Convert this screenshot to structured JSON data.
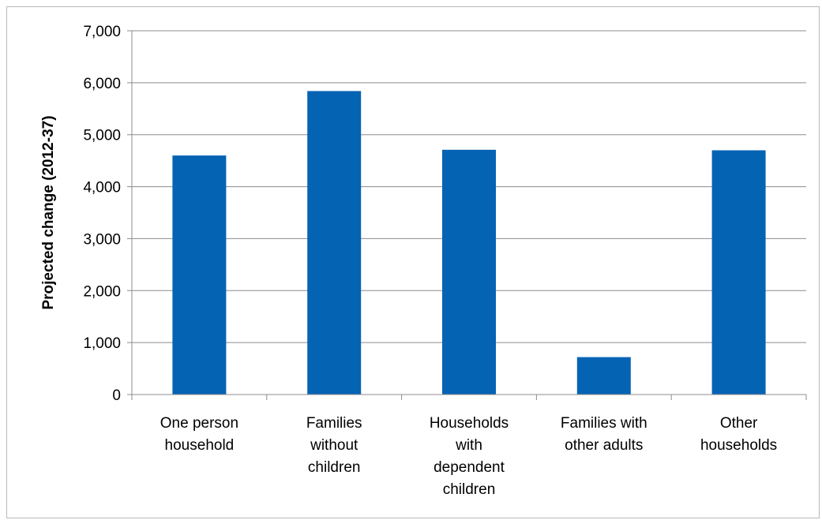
{
  "chart_data": {
    "type": "bar",
    "categories": [
      [
        "One person",
        "household"
      ],
      [
        "Families",
        "without",
        "children"
      ],
      [
        "Households",
        "with",
        "dependent",
        "children"
      ],
      [
        "Families with",
        "other adults"
      ],
      [
        "Other",
        "households"
      ]
    ],
    "values": [
      4600,
      5840,
      4710,
      720,
      4700
    ],
    "ylabel": "Projected change (2012-37)",
    "ylim": [
      0,
      7000
    ],
    "yticks": [
      0,
      1000,
      2000,
      3000,
      4000,
      5000,
      6000,
      7000
    ],
    "ytick_labels": [
      "0",
      "1,000",
      "2,000",
      "3,000",
      "4,000",
      "5,000",
      "6,000",
      "7,000"
    ],
    "grid": true,
    "bar_color": "#0563b4",
    "grid_color": "#8c8c8c",
    "axis_color": "#8c8c8c"
  }
}
